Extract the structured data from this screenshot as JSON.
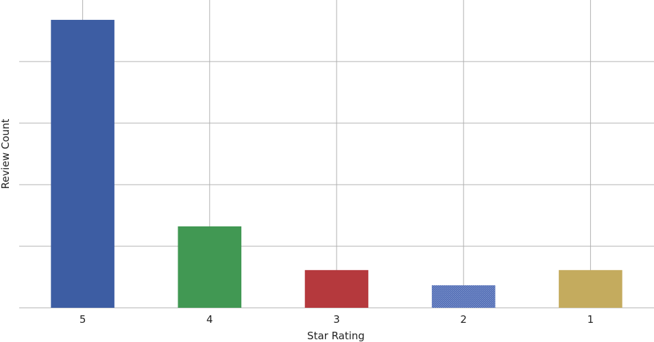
{
  "chart_data": {
    "type": "bar",
    "categories": [
      "5",
      "4",
      "3",
      "2",
      "1"
    ],
    "values": [
      43.5,
      12.3,
      5.7,
      3.4,
      5.7
    ],
    "xlabel": "Star Rating",
    "ylabel": "Review Count",
    "ylim": [
      0,
      46.5
    ],
    "y_gridlines": [
      9.3,
      18.6,
      27.9,
      37.2
    ],
    "y_tick_labels_shown": false,
    "grid": true,
    "bar_colors": [
      "#3d5da3",
      "#419853",
      "#b5393d",
      "#4a66b0",
      "#c4ab5e"
    ],
    "hatched_categories": [
      "2"
    ]
  }
}
